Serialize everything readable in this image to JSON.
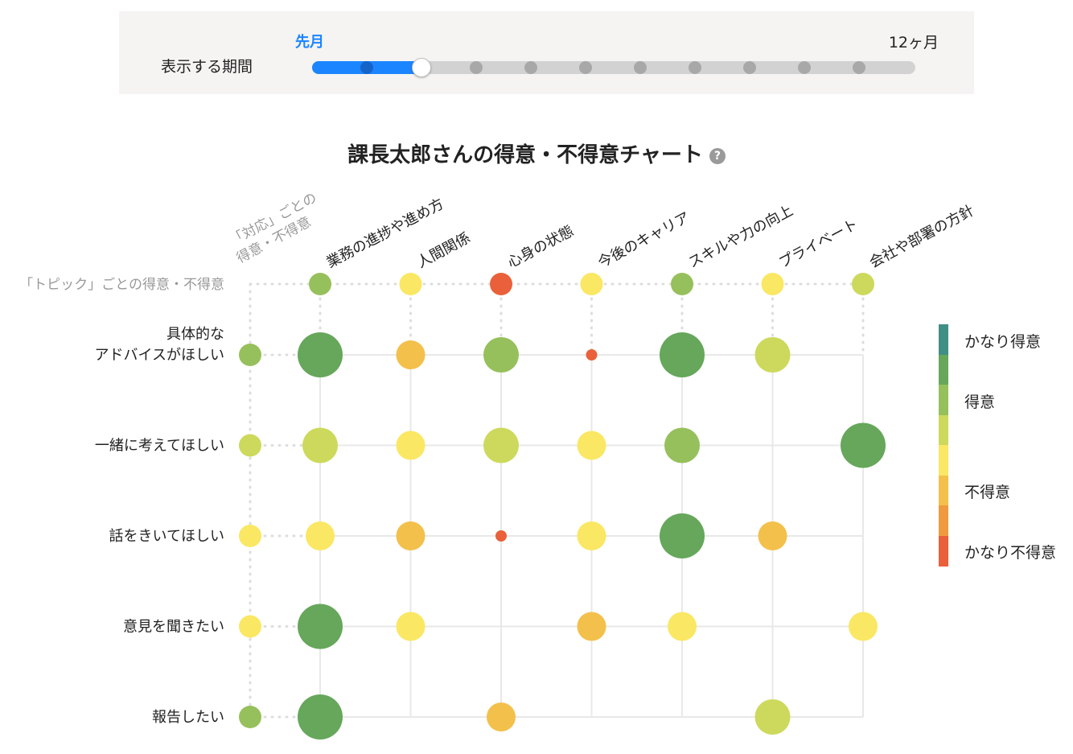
{
  "period": {
    "label": "表示する期間",
    "current": "先月",
    "max": "12ヶ月",
    "steps": 10,
    "selected_index": 1
  },
  "title": "課長太郎さんの得意・不得意チャート",
  "help_icon": "question-circle-icon",
  "colors": {
    "grid": "#e8e8e8",
    "dots": "#dddddd",
    "label_gray": "#999999",
    "accent": "#1b85ff",
    "scale": [
      "#3f8f84",
      "#66a75b",
      "#96c05b",
      "#cdd95c",
      "#fae764",
      "#f3c04b",
      "#ef9a3e",
      "#e9603a"
    ]
  },
  "chart_data": {
    "type": "bubble-matrix",
    "corner_label": [
      "「対応」ごとの",
      "得意・不得意"
    ],
    "topic_row_label": "「トピック」ごとの得意・不得意",
    "columns": [
      "業務の進捗や進め方",
      "人間関係",
      "心身の状態",
      "今後のキャリア",
      "スキルや力の向上",
      "プライベート",
      "会社や部署の方針"
    ],
    "rows": [
      [
        "具体的な",
        "アドバイスがほしい"
      ],
      [
        "一緒に考えてほしい"
      ],
      [
        "話をきいてほしい"
      ],
      [
        "意見を聞きたい"
      ],
      [
        "報告したい"
      ]
    ],
    "topic_summary": [
      {
        "level": 2,
        "size": 1
      },
      {
        "level": 4,
        "size": 1
      },
      {
        "level": 7,
        "size": 1
      },
      {
        "level": 4,
        "size": 1
      },
      {
        "level": 2,
        "size": 1
      },
      {
        "level": 4,
        "size": 1
      },
      {
        "level": 3,
        "size": 1
      }
    ],
    "row_summary": [
      {
        "level": 2,
        "size": 1
      },
      {
        "level": 3,
        "size": 1
      },
      {
        "level": 4,
        "size": 1
      },
      {
        "level": 4,
        "size": 1
      },
      {
        "level": 2,
        "size": 1
      }
    ],
    "cells": [
      [
        {
          "level": 1,
          "size": 4
        },
        {
          "level": 5,
          "size": 2
        },
        {
          "level": 2,
          "size": 3
        },
        {
          "level": 7,
          "size": 0
        },
        {
          "level": 1,
          "size": 4
        },
        {
          "level": 3,
          "size": 3
        },
        null
      ],
      [
        {
          "level": 3,
          "size": 3
        },
        {
          "level": 4,
          "size": 2
        },
        {
          "level": 3,
          "size": 3
        },
        {
          "level": 4,
          "size": 2
        },
        {
          "level": 2,
          "size": 3
        },
        null,
        {
          "level": 1,
          "size": 4
        }
      ],
      [
        {
          "level": 4,
          "size": 2
        },
        {
          "level": 5,
          "size": 2
        },
        {
          "level": 7,
          "size": 0
        },
        {
          "level": 4,
          "size": 2
        },
        {
          "level": 1,
          "size": 4
        },
        {
          "level": 5,
          "size": 2
        },
        null
      ],
      [
        {
          "level": 1,
          "size": 4
        },
        {
          "level": 4,
          "size": 2
        },
        null,
        {
          "level": 5,
          "size": 2
        },
        {
          "level": 4,
          "size": 2
        },
        null,
        {
          "level": 4,
          "size": 2
        }
      ],
      [
        {
          "level": 1,
          "size": 4
        },
        null,
        {
          "level": 5,
          "size": 2
        },
        null,
        null,
        {
          "level": 3,
          "size": 3
        },
        null
      ]
    ],
    "legend": [
      {
        "label": "かなり得意",
        "level": 0
      },
      {
        "label": "得意",
        "level": 2
      },
      {
        "label": "不得意",
        "level": 5
      },
      {
        "label": "かなり不得意",
        "level": 7
      }
    ]
  }
}
